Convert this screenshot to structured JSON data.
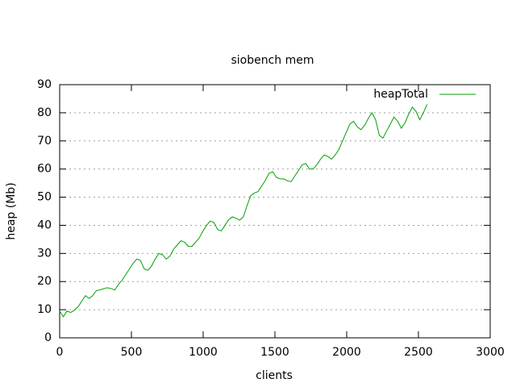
{
  "chart_data": {
    "type": "line",
    "title": "siobench mem",
    "x_label": "clients",
    "y_label": "heap (Mb)",
    "xlim": [
      0,
      3000
    ],
    "xticks": [
      0,
      500,
      1000,
      1500,
      2000,
      2500,
      3000
    ],
    "ylim": [
      0,
      90
    ],
    "yticks": [
      0,
      10,
      20,
      30,
      40,
      50,
      60,
      70,
      80,
      90
    ],
    "grid": true,
    "legend": "top-right",
    "x": [
      0,
      25.6,
      51.2,
      76.8,
      102.4,
      128,
      153.6,
      179.2,
      204.8,
      230.4,
      256,
      281.6,
      307.2,
      332.8,
      358.4,
      384,
      409.6,
      435.2,
      460.8,
      486.4,
      512,
      537.6,
      563.2,
      588.8,
      614.4,
      640,
      665.6,
      691.2,
      716.8,
      742.4,
      768,
      793.6,
      819.2,
      844.8,
      870.4,
      896,
      921.6,
      947.2,
      972.8,
      998.4,
      1024,
      1049.6,
      1075.2,
      1100.8,
      1126.4,
      1152,
      1177.6,
      1203.2,
      1228.8,
      1254.4,
      1280,
      1305.6,
      1331.2,
      1356.8,
      1382.4,
      1408,
      1433.6,
      1459.2,
      1484.8,
      1510.4,
      1536,
      1561.6,
      1587.2,
      1612.8,
      1638.4,
      1664,
      1689.6,
      1715.2,
      1740.8,
      1766.4,
      1792,
      1817.6,
      1843.2,
      1868.8,
      1894.4,
      1920,
      1945.6,
      1971.2,
      1996.8,
      2022.4,
      2048,
      2073.6,
      2099.2,
      2124.8,
      2150.4,
      2176,
      2201.6,
      2227.2,
      2252.8,
      2278.4,
      2304,
      2329.6,
      2355.2,
      2380.8,
      2406.4,
      2432,
      2457.6,
      2483.2,
      2508.8,
      2534.4,
      2560
    ],
    "series": [
      {
        "name": "heapTotal",
        "color": "#00a000",
        "values": [
          9.5,
          7.5,
          9.5,
          9,
          9.8,
          11,
          13,
          15,
          14,
          15,
          16.8,
          17,
          17.5,
          17.8,
          17.5,
          17,
          19,
          20.5,
          22.5,
          24.5,
          26.5,
          28,
          27.5,
          24.5,
          24,
          25.5,
          28,
          30,
          29.5,
          28,
          29,
          31.5,
          33,
          34.5,
          34,
          32.5,
          32.5,
          34,
          35.5,
          38,
          40,
          41.5,
          41,
          38.5,
          38,
          40,
          42,
          43,
          42.5,
          41.8,
          43,
          47,
          50.5,
          51.5,
          52,
          54,
          56,
          58.5,
          59,
          57,
          56.5,
          56.5,
          55.8,
          55.5,
          57.5,
          59.5,
          61.5,
          62,
          60,
          60,
          61.5,
          63.5,
          65,
          64.5,
          63.5,
          65,
          67,
          70,
          73,
          76,
          77,
          75,
          74,
          75.5,
          78,
          80,
          77.5,
          72,
          71,
          73.5,
          76,
          78.5,
          77,
          74.5,
          76.5,
          79.5,
          82,
          80.5,
          77.5,
          80,
          83
        ]
      }
    ]
  }
}
